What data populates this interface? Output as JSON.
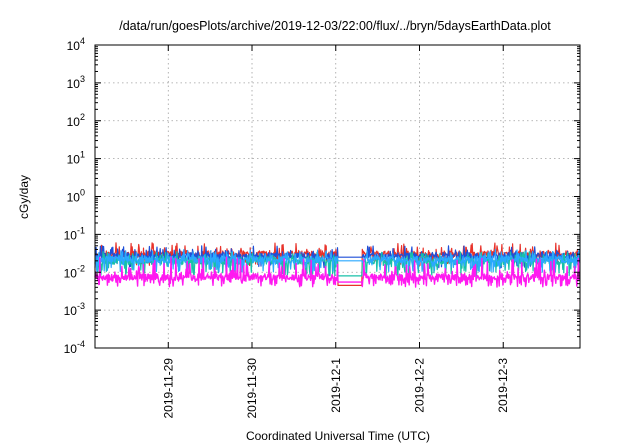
{
  "chart_data": {
    "type": "line",
    "title": "/data/run/goesPlots/archive/2019-12-03/22:00/flux/../bryn/5daysEarthData.plot",
    "xlabel": "Coordinated Universal Time (UTC)",
    "ylabel": "cGy/day",
    "yscale": "log",
    "ylim": [
      0.0001,
      10000
    ],
    "xlim": [
      "2019-11-28 03:00",
      "2019-12-03 22:00"
    ],
    "grid": true,
    "legend": "none",
    "x_ticks": [
      {
        "label": "2019-11-29",
        "value": "2019-11-29 00:00"
      },
      {
        "label": "2019-11-30",
        "value": "2019-11-30 00:00"
      },
      {
        "label": "2019-12-1",
        "value": "2019-12-01 00:00"
      },
      {
        "label": "2019-12-2",
        "value": "2019-12-02 00:00"
      },
      {
        "label": "2019-12-3",
        "value": "2019-12-03 00:00"
      }
    ],
    "y_ticks": [
      {
        "base": "10",
        "exp": "-4",
        "value": 0.0001
      },
      {
        "base": "10",
        "exp": "-3",
        "value": 0.001
      },
      {
        "base": "10",
        "exp": "-2",
        "value": 0.01
      },
      {
        "base": "10",
        "exp": "-1",
        "value": 0.1
      },
      {
        "base": "10",
        "exp": "0",
        "value": 1
      },
      {
        "base": "10",
        "exp": "1",
        "value": 10
      },
      {
        "base": "10",
        "exp": "2",
        "value": 100
      },
      {
        "base": "10",
        "exp": "3",
        "value": 1000
      },
      {
        "base": "10",
        "exp": "4",
        "value": 10000
      }
    ],
    "data_gap": [
      "2019-12-01 00:30",
      "2019-12-01 07:30"
    ],
    "series": [
      {
        "color": "#e8322a",
        "base": 0.03,
        "min": 0.015,
        "max": 0.06,
        "gap_value": 0.0045
      },
      {
        "color": "#1e4fd8",
        "base": 0.027,
        "min": 0.013,
        "max": 0.05,
        "gap_value": 0.025
      },
      {
        "color": "#18c0a8",
        "base": 0.02,
        "min": 0.008,
        "max": 0.035,
        "gap_value": 0.008
      },
      {
        "color": "#2aa8ff",
        "base": 0.022,
        "min": 0.01,
        "max": 0.04,
        "gap_value": 0.02
      },
      {
        "color": "#ff19f0",
        "base": 0.0075,
        "min": 0.004,
        "max": 0.025,
        "gap_value": 0.0055
      }
    ]
  }
}
